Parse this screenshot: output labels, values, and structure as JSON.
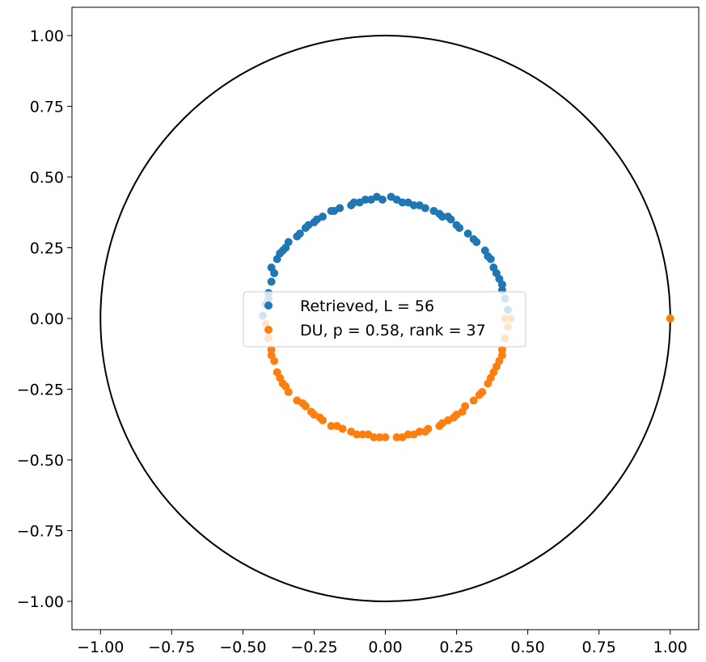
{
  "chart_data": {
    "type": "scatter",
    "title": "",
    "xlabel": "",
    "ylabel": "",
    "xlim": [
      -1.1,
      1.1
    ],
    "ylim": [
      -1.1,
      1.1
    ],
    "xticks": [
      -1.0,
      -0.75,
      -0.5,
      -0.25,
      0.0,
      0.25,
      0.5,
      0.75,
      1.0
    ],
    "yticks": [
      -1.0,
      -0.75,
      -0.5,
      -0.25,
      0.0,
      0.25,
      0.5,
      0.75,
      1.0
    ],
    "xtick_labels": [
      "−1.00",
      "−0.75",
      "−0.50",
      "−0.25",
      "0.00",
      "0.25",
      "0.50",
      "0.75",
      "1.00"
    ],
    "ytick_labels": [
      "−1.00",
      "−0.75",
      "−0.50",
      "−0.25",
      "0.00",
      "0.25",
      "0.50",
      "0.75",
      "1.00"
    ],
    "grid": false,
    "legend_position": "center",
    "unit_circle": {
      "radius": 1.0,
      "color": "#000000"
    },
    "series": [
      {
        "name": "Retrieved, L = 56",
        "color": "#1f77b4",
        "marker": "circle",
        "approx_shape": "upper half ring, radius about 0.42 centered at origin",
        "points": [
          [
            -0.43,
            0.01
          ],
          [
            -0.42,
            0.05
          ],
          [
            -0.41,
            0.09
          ],
          [
            -0.4,
            0.13
          ],
          [
            -0.4,
            0.18
          ],
          [
            -0.38,
            0.21
          ],
          [
            -0.36,
            0.24
          ],
          [
            -0.34,
            0.27
          ],
          [
            -0.31,
            0.29
          ],
          [
            -0.28,
            0.32
          ],
          [
            -0.25,
            0.34
          ],
          [
            -0.22,
            0.36
          ],
          [
            -0.19,
            0.38
          ],
          [
            -0.16,
            0.39
          ],
          [
            -0.12,
            0.4
          ],
          [
            -0.09,
            0.41
          ],
          [
            -0.05,
            0.42
          ],
          [
            -0.01,
            0.42
          ],
          [
            0.02,
            0.43
          ],
          [
            0.06,
            0.41
          ],
          [
            0.1,
            0.4
          ],
          [
            0.14,
            0.39
          ],
          [
            0.17,
            0.38
          ],
          [
            0.2,
            0.36
          ],
          [
            0.23,
            0.35
          ],
          [
            0.26,
            0.32
          ],
          [
            0.29,
            0.3
          ],
          [
            0.32,
            0.27
          ],
          [
            0.35,
            0.24
          ],
          [
            0.37,
            0.21
          ],
          [
            0.38,
            0.18
          ],
          [
            0.4,
            0.14
          ],
          [
            0.41,
            0.1
          ],
          [
            0.42,
            0.07
          ],
          [
            0.43,
            0.03
          ],
          [
            -0.41,
            0.07
          ],
          [
            -0.39,
            0.16
          ],
          [
            -0.35,
            0.25
          ],
          [
            -0.3,
            0.3
          ],
          [
            -0.24,
            0.35
          ],
          [
            -0.18,
            0.38
          ],
          [
            -0.11,
            0.41
          ],
          [
            -0.03,
            0.43
          ],
          [
            0.04,
            0.42
          ],
          [
            0.12,
            0.4
          ],
          [
            0.19,
            0.37
          ],
          [
            0.25,
            0.33
          ],
          [
            0.31,
            0.28
          ],
          [
            0.36,
            0.22
          ],
          [
            0.39,
            0.16
          ],
          [
            0.41,
            0.12
          ],
          [
            -0.37,
            0.23
          ],
          [
            -0.27,
            0.33
          ],
          [
            -0.07,
            0.42
          ],
          [
            0.08,
            0.41
          ],
          [
            0.22,
            0.36
          ]
        ]
      },
      {
        "name": "DU, p = 0.58, rank = 37",
        "color": "#ff7f0e",
        "marker": "circle",
        "approx_shape": "lower half ring, radius about 0.42, plus one point at (1.0, 0.0)",
        "points": [
          [
            -0.42,
            -0.02
          ],
          [
            -0.41,
            -0.07
          ],
          [
            -0.4,
            -0.11
          ],
          [
            -0.39,
            -0.15
          ],
          [
            -0.38,
            -0.19
          ],
          [
            -0.36,
            -0.23
          ],
          [
            -0.34,
            -0.26
          ],
          [
            -0.31,
            -0.29
          ],
          [
            -0.28,
            -0.31
          ],
          [
            -0.25,
            -0.34
          ],
          [
            -0.22,
            -0.36
          ],
          [
            -0.19,
            -0.38
          ],
          [
            -0.15,
            -0.39
          ],
          [
            -0.12,
            -0.4
          ],
          [
            -0.08,
            -0.41
          ],
          [
            -0.04,
            -0.42
          ],
          [
            0.0,
            -0.42
          ],
          [
            0.04,
            -0.42
          ],
          [
            0.08,
            -0.41
          ],
          [
            0.12,
            -0.4
          ],
          [
            0.15,
            -0.39
          ],
          [
            0.19,
            -0.38
          ],
          [
            0.22,
            -0.36
          ],
          [
            0.25,
            -0.34
          ],
          [
            0.28,
            -0.31
          ],
          [
            0.31,
            -0.29
          ],
          [
            0.34,
            -0.26
          ],
          [
            0.36,
            -0.23
          ],
          [
            0.38,
            -0.19
          ],
          [
            0.4,
            -0.15
          ],
          [
            0.41,
            -0.11
          ],
          [
            0.42,
            -0.07
          ],
          [
            0.43,
            -0.03
          ],
          [
            0.42,
            0.0
          ],
          [
            0.44,
            0.0
          ],
          [
            -0.4,
            -0.13
          ],
          [
            -0.35,
            -0.24
          ],
          [
            -0.29,
            -0.3
          ],
          [
            -0.23,
            -0.35
          ],
          [
            -0.17,
            -0.38
          ],
          [
            -0.1,
            -0.41
          ],
          [
            -0.02,
            -0.42
          ],
          [
            0.06,
            -0.42
          ],
          [
            0.14,
            -0.4
          ],
          [
            0.2,
            -0.37
          ],
          [
            0.27,
            -0.33
          ],
          [
            0.33,
            -0.27
          ],
          [
            0.37,
            -0.21
          ],
          [
            0.41,
            -0.13
          ],
          [
            -0.37,
            -0.21
          ],
          [
            -0.26,
            -0.33
          ],
          [
            -0.06,
            -0.41
          ],
          [
            0.1,
            -0.41
          ],
          [
            0.24,
            -0.35
          ],
          [
            0.39,
            -0.17
          ],
          [
            1.0,
            0.0
          ]
        ]
      }
    ]
  }
}
